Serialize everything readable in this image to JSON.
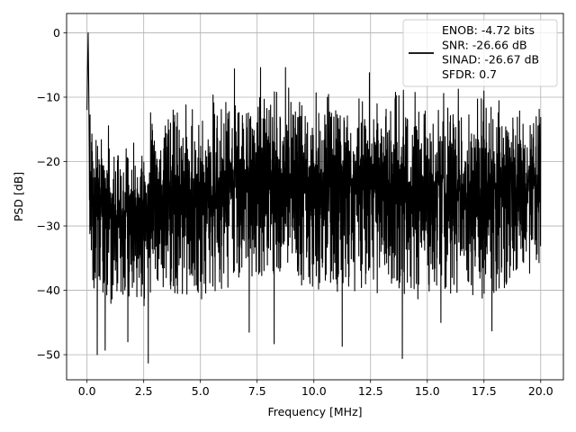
{
  "chart_data": {
    "type": "line",
    "title": "",
    "xlabel": "Frequency [MHz]",
    "ylabel": "PSD [dB]",
    "xlim": [
      -0.9,
      21.0
    ],
    "ylim": [
      -53.9,
      3.0
    ],
    "xticks": [
      0.0,
      2.5,
      5.0,
      7.5,
      10.0,
      12.5,
      15.0,
      17.5,
      20.0
    ],
    "xtick_labels": [
      "0.0",
      "2.5",
      "5.0",
      "7.5",
      "10.0",
      "12.5",
      "15.0",
      "17.5",
      "20.0"
    ],
    "yticks": [
      0,
      -10,
      -20,
      -30,
      -40,
      -50
    ],
    "ytick_labels": [
      "0",
      "−10",
      "−20",
      "−30",
      "−40",
      "−50"
    ],
    "grid": true,
    "legend_position": "top-right",
    "legend_entries": [
      "ENOB: -4.72 bits",
      "SNR: -26.66 dB",
      "SINAD: -26.67 dB",
      "SFDR: 0.7"
    ],
    "series": [
      {
        "color": "#000000",
        "description": "dense noise-like power spectral density trace",
        "x_range": [
          0.0,
          20.0
        ],
        "peak": {
          "x": 0.05,
          "y": 0.0
        },
        "envelope_x": [
          0.0,
          0.1,
          0.3,
          0.5,
          1.0,
          1.5,
          2.0,
          2.5,
          3.0,
          4.0,
          5.0,
          6.0,
          7.0,
          7.5,
          8.0,
          9.0,
          10.0,
          11.0,
          12.0,
          13.0,
          14.0,
          15.0,
          16.0,
          17.0,
          18.0,
          19.0,
          20.0
        ],
        "envelope_upper": [
          0.0,
          -11.5,
          -13.0,
          -14.0,
          -14.0,
          -13.5,
          -13.0,
          -12.0,
          -11.5,
          -10.0,
          -9.0,
          -8.0,
          -7.0,
          -6.0,
          -6.5,
          -7.0,
          -7.0,
          -7.0,
          -6.5,
          -6.5,
          -7.0,
          -7.5,
          -7.0,
          -7.5,
          -7.5,
          -8.0,
          -9.0
        ],
        "envelope_lower": [
          -12.0,
          -31.0,
          -42.0,
          -40.0,
          -42.0,
          -43.0,
          -42.0,
          -44.0,
          -39.0,
          -41.0,
          -42.0,
          -41.0,
          -38.0,
          -38.0,
          -38.0,
          -41.0,
          -40.0,
          -41.0,
          -41.0,
          -41.0,
          -41.0,
          -42.0,
          -42.0,
          -42.0,
          -42.0,
          -39.0,
          -36.0
        ],
        "minima": [
          {
            "x": 0.45,
            "y": -50.0
          },
          {
            "x": 0.8,
            "y": -49.3
          },
          {
            "x": 1.8,
            "y": -48.0
          },
          {
            "x": 2.7,
            "y": -51.3
          },
          {
            "x": 7.15,
            "y": -46.5
          },
          {
            "x": 8.25,
            "y": -48.3
          },
          {
            "x": 11.25,
            "y": -48.7
          },
          {
            "x": 13.9,
            "y": -50.6
          },
          {
            "x": 15.6,
            "y": -45.0
          },
          {
            "x": 17.85,
            "y": -46.3
          }
        ],
        "maxima": [
          {
            "x": 6.5,
            "y": -5.6
          },
          {
            "x": 7.65,
            "y": -5.4
          },
          {
            "x": 8.75,
            "y": -5.4
          },
          {
            "x": 12.45,
            "y": -6.2
          }
        ]
      }
    ]
  }
}
